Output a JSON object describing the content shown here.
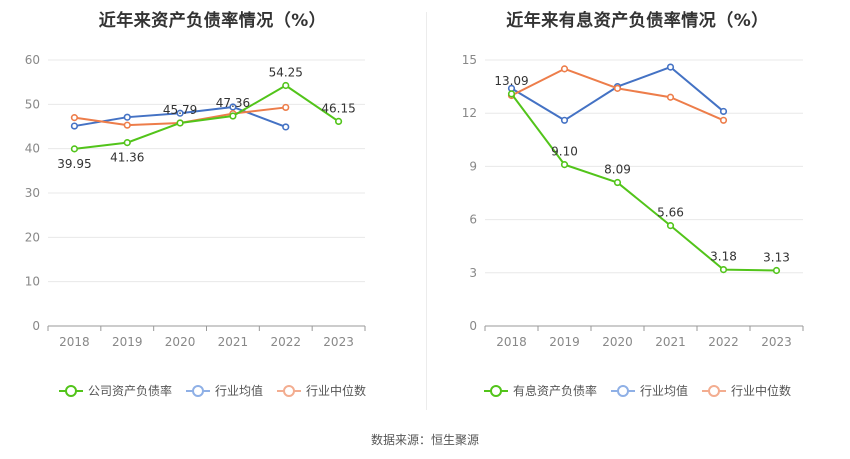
{
  "source": "数据来源：恒生聚源",
  "colors": {
    "company": "#52c41a",
    "avg": "#4472c4",
    "median": "#ed7d4a"
  },
  "chart_data": [
    {
      "type": "line",
      "title": "近年来资产负债率情况（%）",
      "categories": [
        "2018",
        "2019",
        "2020",
        "2021",
        "2022",
        "2023"
      ],
      "ylim": [
        0,
        60
      ],
      "yticks": [
        0,
        10,
        20,
        30,
        40,
        50,
        60
      ],
      "grid": true,
      "legend": "bottom",
      "series": [
        {
          "name": "公司资产负债率",
          "key": "company",
          "values": [
            39.95,
            41.36,
            45.79,
            47.36,
            54.25,
            46.15
          ],
          "labels": true
        },
        {
          "name": "行业均值",
          "key": "avg",
          "values": [
            45.1,
            47.1,
            48.0,
            49.4,
            44.9,
            null
          ],
          "labels": false
        },
        {
          "name": "行业中位数",
          "key": "median",
          "values": [
            47.0,
            45.3,
            45.8,
            47.9,
            49.3,
            null
          ],
          "labels": false
        }
      ]
    },
    {
      "type": "line",
      "title": "近年来有息资产负债率情况（%）",
      "categories": [
        "2018",
        "2019",
        "2020",
        "2021",
        "2022",
        "2023"
      ],
      "ylim": [
        0,
        15
      ],
      "yticks": [
        0,
        3,
        6,
        9,
        12,
        15
      ],
      "grid": true,
      "legend": "bottom",
      "series": [
        {
          "name": "有息资产负债率",
          "key": "company",
          "values": [
            13.09,
            9.1,
            8.09,
            5.66,
            3.18,
            3.13
          ],
          "labels": true
        },
        {
          "name": "行业均值",
          "key": "avg",
          "values": [
            13.4,
            11.6,
            13.5,
            14.6,
            12.1,
            null
          ],
          "labels": false
        },
        {
          "name": "行业中位数",
          "key": "median",
          "values": [
            13.0,
            14.5,
            13.4,
            12.9,
            11.6,
            null
          ],
          "labels": false
        }
      ]
    }
  ]
}
